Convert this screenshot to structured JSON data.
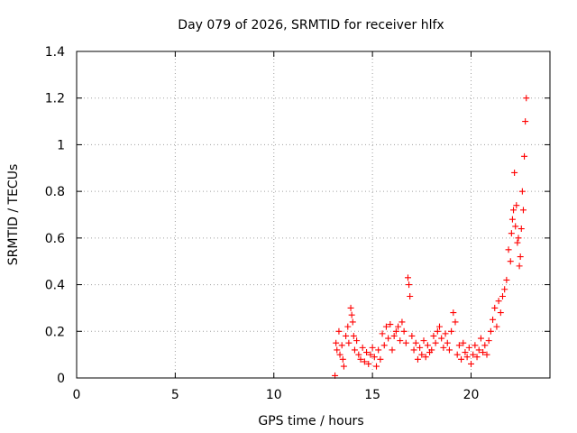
{
  "chart_data": {
    "type": "scatter",
    "title": "Day 079 of 2026, SRMTID for receiver hlfx",
    "xlabel": "GPS time / hours",
    "ylabel": "SRMTID / TECUs",
    "xlim": [
      0,
      24
    ],
    "ylim": [
      0,
      1.4
    ],
    "xticks": [
      0,
      5,
      10,
      15,
      20
    ],
    "xtick_labels": [
      "0",
      "5",
      "10",
      "15",
      "20"
    ],
    "yticks": [
      0,
      0.2,
      0.4,
      0.6,
      0.8,
      1,
      1.2,
      1.4
    ],
    "ytick_labels": [
      "0",
      "0.2",
      "0.4",
      "0.6",
      "0.8",
      "1",
      "1.2",
      "1.4"
    ],
    "grid": true,
    "marker": "+",
    "color": "#ff0000",
    "series": [
      {
        "name": "SRMTID",
        "x": [
          13.1,
          13.15,
          13.2,
          13.3,
          13.35,
          13.45,
          13.5,
          13.55,
          13.65,
          13.75,
          13.8,
          13.9,
          13.95,
          14.0,
          14.05,
          14.1,
          14.2,
          14.3,
          14.4,
          14.5,
          14.6,
          14.7,
          14.8,
          14.9,
          15.0,
          15.1,
          15.2,
          15.3,
          15.4,
          15.5,
          15.6,
          15.7,
          15.8,
          15.9,
          16.0,
          16.1,
          16.2,
          16.3,
          16.4,
          16.5,
          16.6,
          16.7,
          16.8,
          16.85,
          16.9,
          17.0,
          17.1,
          17.2,
          17.3,
          17.4,
          17.5,
          17.6,
          17.7,
          17.8,
          17.9,
          18.0,
          18.1,
          18.2,
          18.3,
          18.4,
          18.5,
          18.6,
          18.7,
          18.8,
          18.9,
          19.0,
          19.1,
          19.2,
          19.3,
          19.4,
          19.5,
          19.6,
          19.7,
          19.8,
          19.9,
          20.0,
          20.1,
          20.2,
          20.3,
          20.4,
          20.5,
          20.6,
          20.7,
          20.8,
          20.9,
          21.0,
          21.1,
          21.2,
          21.3,
          21.4,
          21.5,
          21.6,
          21.7,
          21.8,
          21.9,
          22.0,
          22.05,
          22.1,
          22.15,
          22.2,
          22.25,
          22.3,
          22.35,
          22.4,
          22.45,
          22.5,
          22.55,
          22.6,
          22.65,
          22.7,
          22.75,
          22.8
        ],
        "y": [
          0.01,
          0.15,
          0.12,
          0.2,
          0.1,
          0.14,
          0.08,
          0.05,
          0.18,
          0.22,
          0.15,
          0.3,
          0.27,
          0.24,
          0.18,
          0.12,
          0.16,
          0.1,
          0.08,
          0.13,
          0.07,
          0.11,
          0.06,
          0.1,
          0.13,
          0.09,
          0.05,
          0.12,
          0.08,
          0.19,
          0.14,
          0.22,
          0.17,
          0.23,
          0.12,
          0.18,
          0.2,
          0.22,
          0.16,
          0.24,
          0.2,
          0.15,
          0.43,
          0.4,
          0.35,
          0.18,
          0.12,
          0.15,
          0.08,
          0.13,
          0.1,
          0.16,
          0.09,
          0.14,
          0.11,
          0.12,
          0.18,
          0.15,
          0.2,
          0.22,
          0.17,
          0.13,
          0.19,
          0.15,
          0.12,
          0.2,
          0.28,
          0.24,
          0.1,
          0.14,
          0.08,
          0.15,
          0.11,
          0.09,
          0.13,
          0.06,
          0.1,
          0.14,
          0.09,
          0.12,
          0.17,
          0.11,
          0.14,
          0.1,
          0.16,
          0.2,
          0.25,
          0.3,
          0.22,
          0.33,
          0.28,
          0.35,
          0.38,
          0.42,
          0.55,
          0.5,
          0.62,
          0.68,
          0.72,
          0.88,
          0.65,
          0.74,
          0.58,
          0.6,
          0.48,
          0.52,
          0.64,
          0.8,
          0.72,
          0.95,
          1.1,
          1.2
        ]
      }
    ]
  }
}
